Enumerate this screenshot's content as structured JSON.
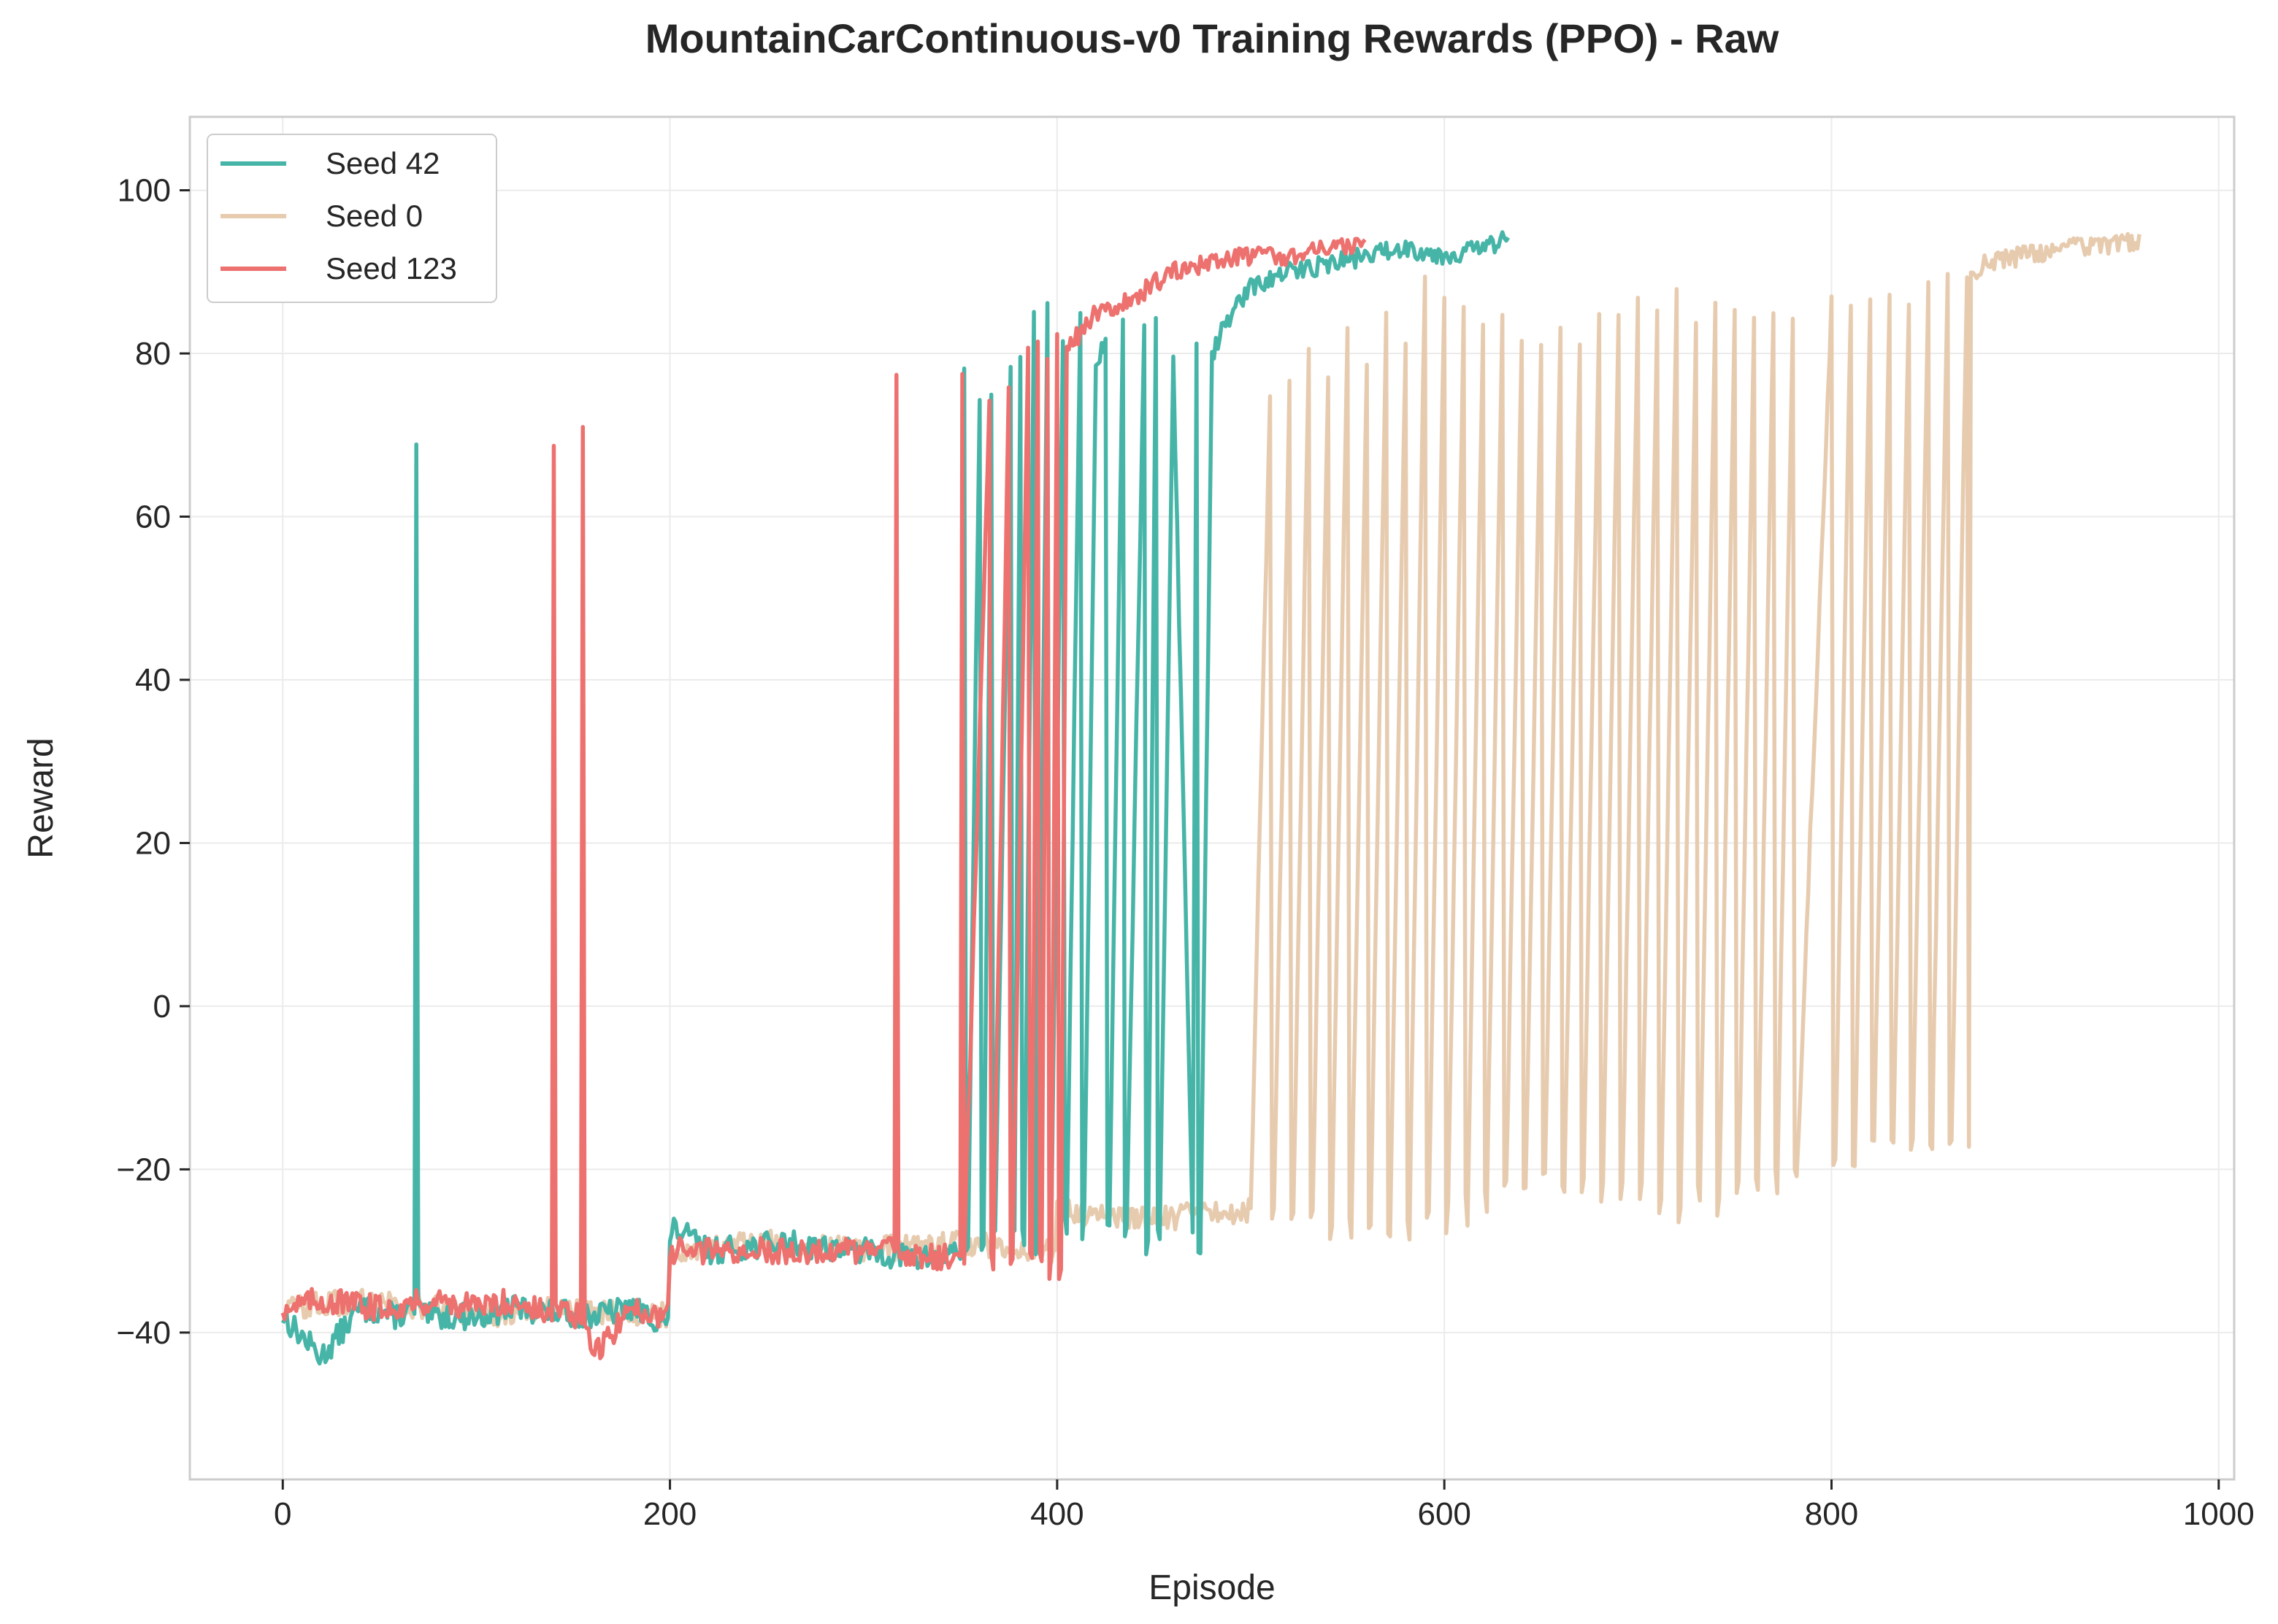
{
  "chart_data": {
    "type": "line",
    "title": "MountainCarContinuous-v0 Training Rewards (PPO) - Raw",
    "xlabel": "Episode",
    "ylabel": "Reward",
    "xlim": [
      -48,
      1008
    ],
    "ylim": [
      -58,
      109
    ],
    "x_ticks": [
      0,
      200,
      400,
      600,
      800,
      1000
    ],
    "y_ticks": [
      -40,
      -20,
      0,
      20,
      40,
      60,
      80,
      100
    ],
    "grid": true,
    "legend_position": "top-left",
    "series": [
      {
        "name": "Seed 42",
        "color": "#46b5a8",
        "episodes": 634,
        "x": [
          0,
          20,
          40,
          60,
          68,
          69,
          70,
          71,
          72,
          100,
          120,
          160,
          180,
          199,
          200,
          201,
          220,
          260,
          300,
          330,
          350,
          352,
          353,
          354,
          360,
          361,
          362,
          366,
          367,
          368,
          376,
          377,
          378,
          381,
          382,
          383,
          388,
          389,
          390,
          395,
          396,
          397,
          403,
          404,
          405,
          412,
          413,
          414,
          420,
          425,
          426,
          427,
          434,
          435,
          436,
          445,
          446,
          447,
          451,
          452,
          453,
          460,
          470,
          472,
          473,
          474,
          480,
          490,
          500,
          510,
          520,
          540,
          560,
          580,
          600,
          620,
          634
        ],
        "y": [
          -38,
          -43,
          -37,
          -38,
          -37,
          68,
          -36,
          -37,
          -38,
          -38,
          -37,
          -38,
          -37,
          -39,
          -30,
          -27,
          -30,
          -29,
          -30,
          -31,
          -30,
          77,
          -30,
          -29,
          75,
          -29,
          -30,
          74,
          -28,
          -29,
          78,
          -27,
          -29,
          80,
          -27,
          -28,
          84,
          -29,
          -27,
          86,
          -26,
          -27,
          82,
          -26,
          -27,
          85,
          -27,
          -26,
          78,
          82,
          -28,
          -26,
          84,
          -27,
          -26,
          83,
          -29,
          -28,
          84,
          -29,
          -28,
          80,
          -27,
          82,
          -31,
          -29,
          80,
          85,
          88,
          89,
          90,
          91,
          92,
          93,
          92,
          93,
          94
        ]
      },
      {
        "name": "Seed 0",
        "color": "#e7cbaf",
        "episodes": 960,
        "x": [
          0,
          50,
          100,
          150,
          199,
          200,
          250,
          300,
          350,
          399,
          400,
          450,
          500,
          510,
          511,
          512,
          520,
          521,
          522,
          530,
          531,
          532,
          540,
          541,
          542,
          550,
          551,
          552,
          560,
          561,
          562,
          570,
          571,
          572,
          580,
          581,
          582,
          590,
          591,
          592,
          600,
          601,
          602,
          610,
          611,
          612,
          620,
          621,
          622,
          630,
          631,
          632,
          640,
          641,
          642,
          650,
          651,
          652,
          660,
          661,
          662,
          670,
          671,
          672,
          680,
          681,
          682,
          690,
          691,
          692,
          700,
          701,
          702,
          710,
          711,
          712,
          720,
          721,
          722,
          730,
          731,
          732,
          740,
          741,
          742,
          750,
          751,
          752,
          760,
          761,
          762,
          770,
          771,
          772,
          780,
          781,
          782,
          800,
          801,
          802,
          810,
          811,
          812,
          820,
          821,
          822,
          830,
          831,
          832,
          840,
          841,
          842,
          850,
          851,
          852,
          860,
          861,
          862,
          870,
          871,
          872,
          880,
          900,
          920,
          940,
          960
        ],
        "y": [
          -37,
          -36,
          -38,
          -37,
          -38,
          -30,
          -29,
          -30,
          -29,
          -30,
          -25,
          -26,
          -25,
          75,
          -26,
          -25,
          76,
          -27,
          -26,
          80,
          -26,
          -25,
          78,
          -27,
          -26,
          84,
          -26,
          -27,
          79,
          -27,
          -26,
          85,
          -28,
          -27,
          82,
          -26,
          -27,
          90,
          -25,
          -26,
          88,
          -27,
          -25,
          85,
          -24,
          -26,
          84,
          -23,
          -24,
          85,
          -22,
          -23,
          82,
          -21,
          -22,
          80,
          -22,
          -21,
          84,
          -23,
          -22,
          82,
          -22,
          -21,
          85,
          -23,
          -22,
          84,
          -24,
          -23,
          86,
          -23,
          -22,
          85,
          -25,
          -24,
          88,
          -26,
          -25,
          84,
          -23,
          -24,
          86,
          -25,
          -24,
          85,
          -22,
          -23,
          84,
          -22,
          -21,
          86,
          -21,
          -22,
          85,
          -20,
          -21,
          86,
          -18,
          -19,
          87,
          -18,
          -19,
          86,
          -17,
          -18,
          88,
          -16,
          -17,
          87,
          -18,
          -17,
          88,
          -17,
          -16,
          90,
          -18,
          -17,
          90,
          -18,
          90,
          91,
          92,
          93,
          93,
          94
        ]
      },
      {
        "name": "Seed 123",
        "color": "#ed716e",
        "episodes": 560,
        "x": [
          0,
          20,
          50,
          80,
          100,
          120,
          139,
          140,
          141,
          150,
          154,
          155,
          156,
          160,
          180,
          199,
          200,
          240,
          280,
          316,
          317,
          318,
          340,
          350,
          351,
          352,
          365,
          366,
          367,
          375,
          376,
          377,
          385,
          386,
          387,
          390,
          391,
          392,
          395,
          396,
          397,
          400,
          401,
          402,
          405,
          410,
          420,
          440,
          460,
          480,
          500,
          520,
          540,
          560
        ],
        "y": [
          -37,
          -36,
          -37,
          -36,
          -37,
          -36,
          -38,
          68,
          -37,
          -38,
          -38,
          71,
          -39,
          -43,
          -37,
          -38,
          -30,
          -30,
          -30,
          -30,
          78,
          -30,
          -31,
          -30,
          77,
          -31,
          74,
          -30,
          -31,
          75,
          -31,
          -30,
          80,
          -31,
          -30,
          82,
          -30,
          -31,
          80,
          -32,
          -31,
          83,
          -33,
          -32,
          80,
          82,
          85,
          87,
          90,
          91,
          92,
          92,
          93,
          93
        ]
      }
    ]
  }
}
